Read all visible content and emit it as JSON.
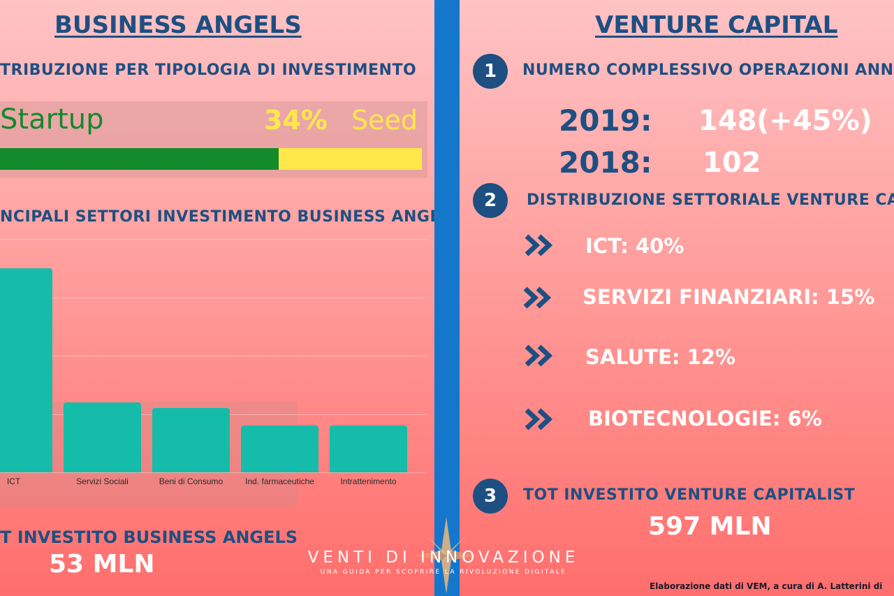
{
  "left": {
    "title": "BUSINESS ANGELS",
    "section1_title": "TRIBUZIONE PER TIPOLOGIA DI INVESTIMENTO",
    "startup_label": "Startup",
    "seed_percent": "34%",
    "seed_label": "Seed",
    "startup_share": 0.66,
    "seed_share": 0.34,
    "section2_title": "NCIPALI SETTORI INVESTIMENTO BUSINESS ANGELS",
    "total_label": "T INVESTITO BUSINESS ANGELS",
    "total_value": "53 MLN"
  },
  "chart_data": {
    "type": "bar",
    "categories": [
      "ICT",
      "Servizi Sociali",
      "Beni di Consumo",
      "Ind. farmaceutiche",
      "Intrattenimento"
    ],
    "values": [
      35,
      12,
      11,
      8,
      8
    ],
    "ylim": [
      0,
      40
    ],
    "grid": true,
    "colors": {
      "bar": "#15bcaa"
    }
  },
  "right": {
    "title": "VENTURE CAPITAL",
    "items": [
      {
        "number": "1",
        "title": "NUMERO COMPLESSIVO OPERAZIONI ANNU"
      },
      {
        "number": "2",
        "title": "DISTRIBUZIONE SETTORIALE VENTURE CA"
      },
      {
        "number": "3",
        "title": "TOT INVESTITO VENTURE CAPITALIST"
      }
    ],
    "years": [
      {
        "year": "2019:",
        "value": "148",
        "change": "(+45%)"
      },
      {
        "year": "2018:",
        "value": "102",
        "change": ""
      }
    ],
    "sectors": [
      {
        "name": "ICT:",
        "value": "40%"
      },
      {
        "name": "SERVIZI FINANZIARI:",
        "value": "15%"
      },
      {
        "name": "SALUTE:",
        "value": "12%"
      },
      {
        "name": "BIOTECNOLOGIE:",
        "value": "6%"
      }
    ],
    "total_value": "597 MLN"
  },
  "branding": {
    "name": "VENTI DI INNOVAZIONE",
    "tagline": "UNA GUIDA PER SCOPRIRE LA RIVOLUZIONE DIGITALE"
  },
  "credit": "Elaborazione dati di VEM, a cura di A. Latterini  di",
  "colors": {
    "navy": "#1e4f82",
    "green": "#138a2c",
    "yellow": "#ffe84a",
    "teal": "#15bcaa",
    "divider": "#1477cc"
  }
}
